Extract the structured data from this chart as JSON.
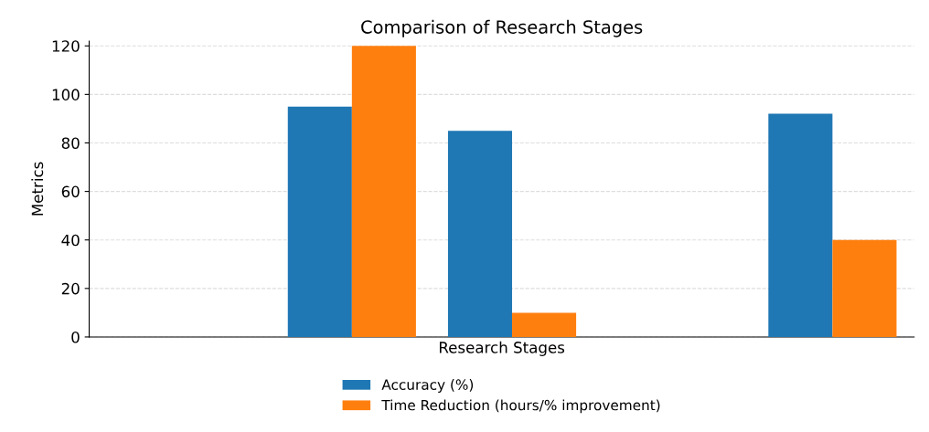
{
  "chart_data": {
    "type": "bar",
    "title": "Comparison of Research Stages",
    "xlabel": "Research Stages",
    "ylabel": "Metrics",
    "categories": [
      null,
      null,
      null,
      null,
      null
    ],
    "series": [
      {
        "name": "Accuracy (%)",
        "color": "#1f77b4",
        "values": [
          null,
          95,
          85,
          null,
          92
        ]
      },
      {
        "name": "Time Reduction (hours/% improvement)",
        "color": "#ff7f0e",
        "values": [
          null,
          120,
          10,
          null,
          40
        ]
      }
    ],
    "ylim": [
      0,
      122
    ],
    "yticks": [
      0,
      20,
      40,
      60,
      80,
      100,
      120
    ],
    "grid": "y",
    "legend": "bottom"
  }
}
